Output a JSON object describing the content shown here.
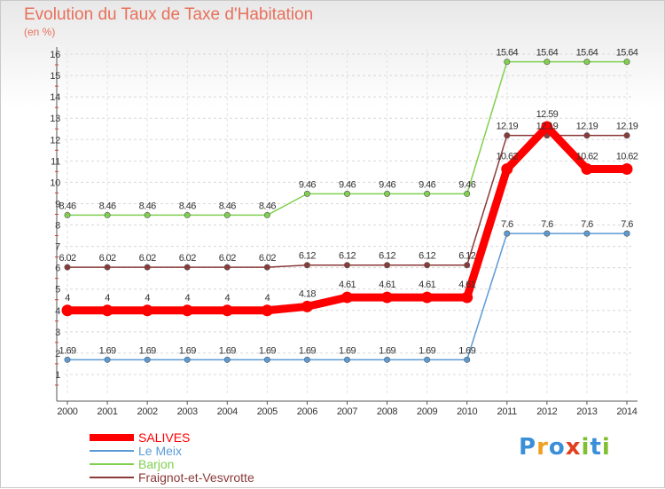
{
  "chart_data": {
    "type": "line",
    "title": "Evolution du Taux de Taxe d'Habitation",
    "subtitle": "(en %)",
    "x": [
      "2000",
      "2001",
      "2002",
      "2003",
      "2004",
      "2005",
      "2006",
      "2007",
      "2008",
      "2009",
      "2010",
      "2011",
      "2012",
      "2013",
      "2014"
    ],
    "ylim": [
      0,
      16
    ],
    "yticks": [
      1,
      2,
      3,
      4,
      5,
      6,
      7,
      8,
      9,
      10,
      11,
      12,
      13,
      14,
      15,
      16
    ],
    "grid": true,
    "legend_position": "bottom-left",
    "series": [
      {
        "name": "Le Meix",
        "color": "#5b9bd5",
        "labels": true,
        "values": [
          1.69,
          1.69,
          1.69,
          1.69,
          1.69,
          1.69,
          1.69,
          1.69,
          1.69,
          1.69,
          1.69,
          7.6,
          7.6,
          7.6,
          7.6
        ]
      },
      {
        "name": "Barjon",
        "color": "#80d050",
        "labels": true,
        "values": [
          8.46,
          8.46,
          8.46,
          8.46,
          8.46,
          8.46,
          9.46,
          9.46,
          9.46,
          9.46,
          9.46,
          15.64,
          15.64,
          15.64,
          15.64
        ]
      },
      {
        "name": "Fraignot-et-Vesvrotte",
        "color": "#8b3a3a",
        "labels": true,
        "values": [
          6.02,
          6.02,
          6.02,
          6.02,
          6.02,
          6.02,
          6.12,
          6.12,
          6.12,
          6.12,
          6.12,
          12.19,
          12.19,
          12.19,
          12.19
        ]
      },
      {
        "name": "SALIVES",
        "color": "#ff0000",
        "labels": true,
        "highlight": true,
        "values": [
          4,
          4,
          4,
          4,
          4,
          4,
          4.18,
          4.61,
          4.61,
          4.61,
          4.61,
          10.62,
          12.59,
          10.62,
          10.62
        ]
      }
    ],
    "legend_order": [
      "SALIVES",
      "Le Meix",
      "Barjon",
      "Fraignot-et-Vesvrotte"
    ]
  },
  "logo": {
    "letters": [
      {
        "ch": "P",
        "color": "#3a8fd8"
      },
      {
        "ch": "r",
        "color": "#f0a020"
      },
      {
        "ch": "o",
        "color": "#3a8fd8"
      },
      {
        "ch": "x",
        "color": "#e04020"
      },
      {
        "ch": "i",
        "color": "#80c030"
      },
      {
        "ch": "t",
        "color": "#3a8fd8"
      },
      {
        "ch": "i",
        "color": "#80c030"
      }
    ]
  }
}
